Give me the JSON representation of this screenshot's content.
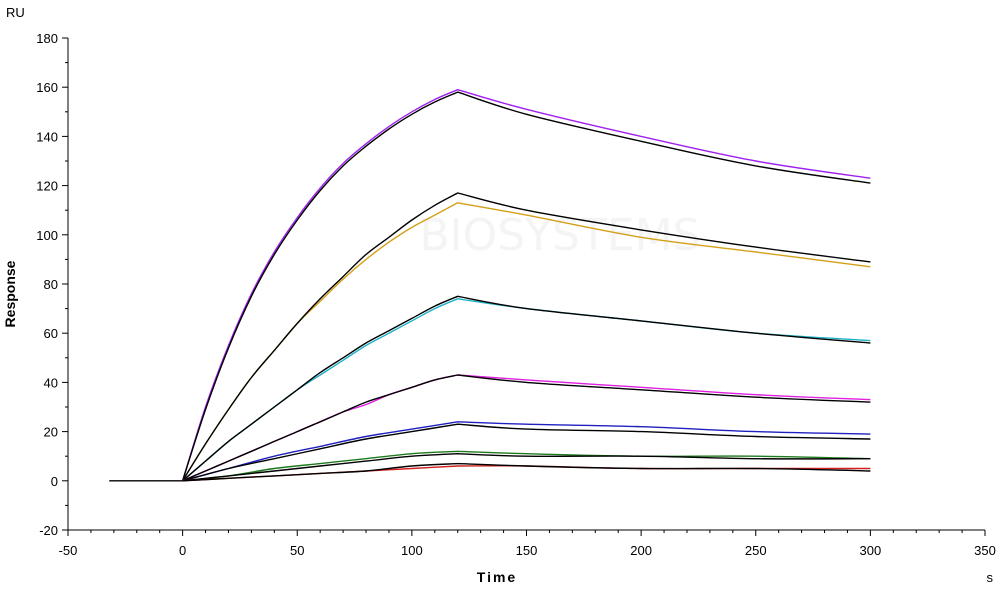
{
  "chart_data": {
    "type": "line",
    "title": "",
    "xlabel": "Time",
    "ylabel": "Response",
    "x_unit": "s",
    "y_unit": "RU",
    "xlim": [
      -50,
      350
    ],
    "ylim": [
      -20,
      180
    ],
    "x_ticks": [
      -50,
      0,
      50,
      100,
      150,
      200,
      250,
      300,
      350
    ],
    "y_ticks": [
      -20,
      0,
      20,
      40,
      60,
      80,
      100,
      120,
      140,
      160,
      180
    ],
    "grid": false,
    "legend": "none",
    "watermark_text": "BIOSYSTEMS",
    "baseline": {
      "x": [
        -32,
        0
      ],
      "y": [
        0,
        0
      ],
      "color": "#000000"
    },
    "series": [
      {
        "color": "#a020f0",
        "x": [
          0,
          10,
          20,
          30,
          40,
          50,
          60,
          70,
          80,
          90,
          100,
          110,
          120,
          150,
          200,
          250,
          300
        ],
        "y": [
          0,
          30,
          55,
          76,
          93,
          107,
          119,
          129,
          137,
          144,
          150,
          155,
          159,
          151,
          140,
          130,
          123
        ]
      },
      {
        "color": "#000000",
        "x": [
          0,
          10,
          20,
          30,
          40,
          50,
          60,
          70,
          80,
          90,
          100,
          110,
          120,
          150,
          200,
          250,
          300
        ],
        "y": [
          0,
          29,
          54,
          75,
          92,
          106,
          118,
          128,
          136,
          143,
          149,
          154,
          158,
          149,
          138,
          128,
          121
        ]
      },
      {
        "color": "#d4a017",
        "x": [
          0,
          10,
          20,
          30,
          40,
          50,
          60,
          70,
          80,
          90,
          100,
          110,
          120,
          150,
          200,
          250,
          300
        ],
        "y": [
          0,
          15,
          29,
          42,
          53,
          64,
          73,
          82,
          90,
          97,
          103,
          108,
          113,
          108,
          99,
          93,
          87
        ]
      },
      {
        "color": "#000000",
        "x": [
          0,
          10,
          20,
          30,
          40,
          50,
          60,
          70,
          80,
          90,
          100,
          110,
          120,
          150,
          200,
          250,
          300
        ],
        "y": [
          0,
          15,
          29,
          42,
          53,
          64,
          74,
          83,
          92,
          99,
          106,
          112,
          117,
          110,
          102,
          95,
          89
        ]
      },
      {
        "color": "#20b2c8",
        "x": [
          0,
          10,
          20,
          30,
          40,
          50,
          60,
          70,
          80,
          90,
          100,
          110,
          120,
          150,
          200,
          250,
          300
        ],
        "y": [
          0,
          8,
          16,
          23,
          30,
          37,
          43,
          49,
          55,
          60,
          65,
          70,
          74,
          70,
          65,
          60,
          57
        ]
      },
      {
        "color": "#000000",
        "x": [
          0,
          10,
          20,
          30,
          40,
          50,
          60,
          70,
          80,
          90,
          100,
          110,
          120,
          150,
          200,
          250,
          300
        ],
        "y": [
          0,
          8,
          16,
          23,
          30,
          37,
          44,
          50,
          56,
          61,
          66,
          71,
          75,
          70,
          65,
          60,
          56
        ]
      },
      {
        "color": "#e020e0",
        "x": [
          0,
          10,
          20,
          30,
          40,
          50,
          60,
          70,
          80,
          90,
          100,
          110,
          120,
          150,
          200,
          250,
          300
        ],
        "y": [
          0,
          4,
          8,
          12,
          16,
          20,
          24,
          28,
          31,
          35,
          38,
          41,
          43,
          41,
          38,
          35,
          33
        ]
      },
      {
        "color": "#000000",
        "x": [
          0,
          10,
          20,
          30,
          40,
          50,
          60,
          70,
          80,
          90,
          100,
          110,
          120,
          150,
          200,
          250,
          300
        ],
        "y": [
          0,
          4,
          8,
          12,
          16,
          20,
          24,
          28,
          32,
          35,
          38,
          41,
          43,
          40,
          37,
          34,
          32
        ]
      },
      {
        "color": "#2020c0",
        "x": [
          0,
          20,
          40,
          60,
          80,
          100,
          120,
          150,
          200,
          250,
          300
        ],
        "y": [
          0,
          5,
          10,
          14,
          18,
          21,
          24,
          23,
          22,
          20,
          19
        ]
      },
      {
        "color": "#000000",
        "x": [
          0,
          20,
          40,
          60,
          80,
          100,
          120,
          150,
          200,
          250,
          300
        ],
        "y": [
          0,
          5,
          9,
          13,
          17,
          20,
          23,
          21,
          20,
          18,
          17
        ]
      },
      {
        "color": "#1f7a1f",
        "x": [
          0,
          20,
          40,
          60,
          80,
          100,
          120,
          150,
          200,
          250,
          300
        ],
        "y": [
          0,
          2,
          5,
          7,
          9,
          11,
          12,
          11,
          10,
          10,
          9
        ]
      },
      {
        "color": "#000000",
        "x": [
          0,
          20,
          40,
          60,
          80,
          100,
          120,
          150,
          200,
          250,
          300
        ],
        "y": [
          0,
          2,
          4,
          6,
          8,
          10,
          11,
          10,
          10,
          9,
          9
        ]
      },
      {
        "color": "#d02020",
        "x": [
          0,
          20,
          40,
          60,
          80,
          100,
          120,
          150,
          200,
          250,
          300
        ],
        "y": [
          0,
          1,
          2,
          3,
          4,
          5,
          6,
          6,
          5,
          5,
          5
        ]
      },
      {
        "color": "#000000",
        "x": [
          0,
          20,
          40,
          60,
          80,
          100,
          120,
          150,
          200,
          250,
          300
        ],
        "y": [
          0,
          1,
          2,
          3,
          4,
          6,
          7,
          6,
          5,
          5,
          4
        ]
      }
    ]
  }
}
